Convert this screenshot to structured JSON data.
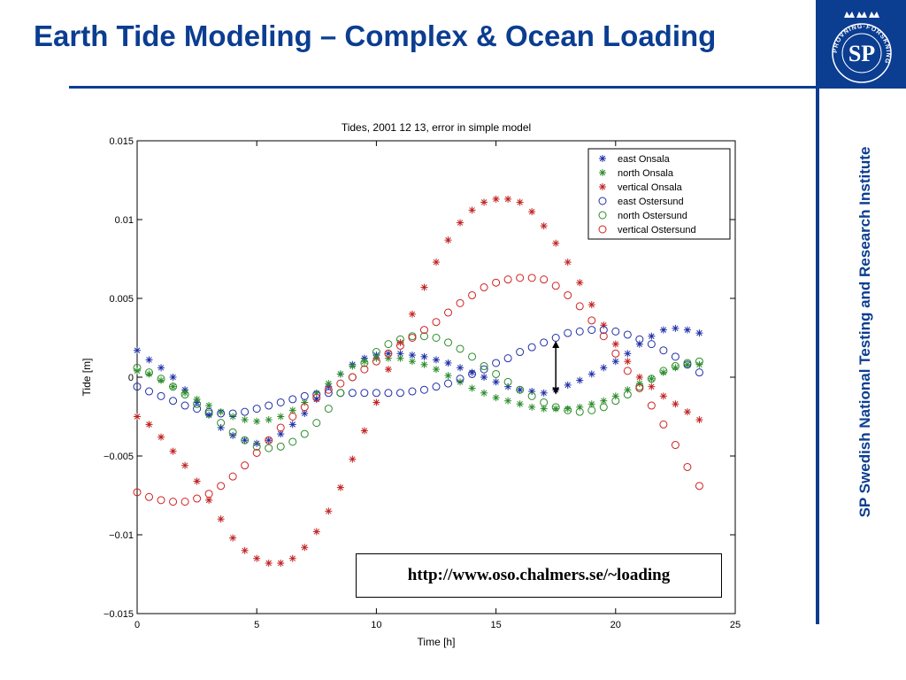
{
  "slide": {
    "title": "Earth Tide Modeling – Complex & Ocean Loading",
    "side_text": "SP Swedish National Testing and Research Institute",
    "url": "http://www.oso.chalmers.se/~loading",
    "logo_text": "SP",
    "logo_ring_text": "PROVNING·FORSKNING",
    "accent_color": "#0b3d91"
  },
  "chart_data": {
    "type": "scatter",
    "title": "Tides, 2001 12 13, error in simple model",
    "xlabel": "Time [h]",
    "ylabel": "Tide [m]",
    "xlim": [
      0,
      25
    ],
    "ylim": [
      -0.015,
      0.015
    ],
    "xticks": [
      0,
      5,
      10,
      15,
      20,
      25
    ],
    "xtick_labels": [
      "0",
      "5",
      "10",
      "15",
      "20",
      "25"
    ],
    "yticks": [
      -0.015,
      -0.01,
      -0.005,
      0,
      0.005,
      0.01,
      0.015
    ],
    "ytick_labels": [
      "−0.015",
      "−0.01",
      "−0.005",
      "0",
      "0.005",
      "0.01",
      "0.015"
    ],
    "legend_position": "top-right",
    "grid": false,
    "x": [
      0,
      0.5,
      1,
      1.5,
      2,
      2.5,
      3,
      3.5,
      4,
      4.5,
      5,
      5.5,
      6,
      6.5,
      7,
      7.5,
      8,
      8.5,
      9,
      9.5,
      10,
      10.5,
      11,
      11.5,
      12,
      12.5,
      13,
      13.5,
      14,
      14.5,
      15,
      15.5,
      16,
      16.5,
      17,
      17.5,
      18,
      18.5,
      19,
      19.5,
      20,
      20.5,
      21,
      21.5,
      22,
      22.5,
      23,
      23.5
    ],
    "series": [
      {
        "name": "east Onsala",
        "marker": "star",
        "color": "#1f2fa6",
        "values": [
          0.0017,
          0.0011,
          0.0006,
          0.0,
          -0.0008,
          -0.0016,
          -0.0024,
          -0.0032,
          -0.0037,
          -0.004,
          -0.0042,
          -0.004,
          -0.0036,
          -0.003,
          -0.0023,
          -0.0014,
          -0.0006,
          0.0002,
          0.0008,
          0.0012,
          0.0014,
          0.0015,
          0.0015,
          0.0014,
          0.0013,
          0.0011,
          0.0009,
          0.0006,
          0.0003,
          0.0,
          -0.0003,
          -0.0006,
          -0.0008,
          -0.0009,
          -0.001,
          -0.0008,
          -0.0005,
          -0.0002,
          0.0002,
          0.0006,
          0.001,
          0.0015,
          0.0021,
          0.0026,
          0.003,
          0.0031,
          0.003,
          0.0028
        ]
      },
      {
        "name": "north Onsala",
        "marker": "star",
        "color": "#2a8c2a",
        "values": [
          0.0004,
          0.0002,
          -0.0002,
          -0.0006,
          -0.001,
          -0.0014,
          -0.0018,
          -0.0022,
          -0.0025,
          -0.0027,
          -0.0028,
          -0.0027,
          -0.0025,
          -0.0021,
          -0.0016,
          -0.001,
          -0.0004,
          0.0002,
          0.0007,
          0.001,
          0.0012,
          0.0012,
          0.0012,
          0.001,
          0.0008,
          0.0005,
          0.0001,
          -0.0003,
          -0.0007,
          -0.001,
          -0.0013,
          -0.0015,
          -0.0017,
          -0.0019,
          -0.002,
          -0.002,
          -0.002,
          -0.0019,
          -0.0017,
          -0.0015,
          -0.0012,
          -0.0008,
          -0.0004,
          -0.0001,
          0.0003,
          0.0006,
          0.0008,
          0.0008
        ]
      },
      {
        "name": "vertical Onsala",
        "marker": "star",
        "color": "#c02020",
        "values": [
          -0.0025,
          -0.003,
          -0.0038,
          -0.0047,
          -0.0056,
          -0.0066,
          -0.0078,
          -0.009,
          -0.0102,
          -0.011,
          -0.0115,
          -0.0118,
          -0.0118,
          -0.0115,
          -0.0108,
          -0.0098,
          -0.0085,
          -0.007,
          -0.0052,
          -0.0034,
          -0.0016,
          0.0005,
          0.0022,
          0.004,
          0.0057,
          0.0073,
          0.0087,
          0.0098,
          0.0106,
          0.0111,
          0.0113,
          0.0113,
          0.0111,
          0.0105,
          0.0096,
          0.0085,
          0.0073,
          0.006,
          0.0046,
          0.0033,
          0.0021,
          0.001,
          0.0,
          -0.0006,
          -0.0012,
          -0.0017,
          -0.0022,
          -0.0027
        ]
      },
      {
        "name": "east Ostersund",
        "marker": "circle",
        "color": "#1f2fa6",
        "values": [
          -0.0006,
          -0.0009,
          -0.0012,
          -0.0015,
          -0.0018,
          -0.002,
          -0.0022,
          -0.0023,
          -0.0023,
          -0.0022,
          -0.002,
          -0.0018,
          -0.0016,
          -0.0014,
          -0.0012,
          -0.0011,
          -0.001,
          -0.001,
          -0.001,
          -0.001,
          -0.001,
          -0.001,
          -0.001,
          -0.0009,
          -0.0008,
          -0.0006,
          -0.0004,
          -0.0001,
          0.0002,
          0.0005,
          0.0009,
          0.0012,
          0.0016,
          0.0019,
          0.0022,
          0.0025,
          0.0028,
          0.0029,
          0.003,
          0.003,
          0.0029,
          0.0027,
          0.0024,
          0.0021,
          0.0017,
          0.0013,
          0.0008,
          0.0003
        ]
      },
      {
        "name": "north Ostersund",
        "marker": "circle",
        "color": "#2a8c2a",
        "values": [
          0.0006,
          0.0003,
          -0.0001,
          -0.0006,
          -0.0011,
          -0.0017,
          -0.0023,
          -0.0029,
          -0.0035,
          -0.004,
          -0.0044,
          -0.0045,
          -0.0044,
          -0.0041,
          -0.0036,
          -0.0029,
          -0.002,
          -0.001,
          0.0,
          0.0009,
          0.0016,
          0.0021,
          0.0024,
          0.0026,
          0.0026,
          0.0025,
          0.0022,
          0.0018,
          0.0013,
          0.0007,
          0.0002,
          -0.0003,
          -0.0008,
          -0.0012,
          -0.0016,
          -0.0019,
          -0.0021,
          -0.0022,
          -0.0021,
          -0.0019,
          -0.0015,
          -0.0011,
          -0.0006,
          -0.0001,
          0.0004,
          0.0007,
          0.0009,
          0.001
        ]
      },
      {
        "name": "vertical Ostersund",
        "marker": "circle",
        "color": "#d02020",
        "values": [
          -0.0073,
          -0.0076,
          -0.0078,
          -0.0079,
          -0.0079,
          -0.0077,
          -0.0074,
          -0.0069,
          -0.0063,
          -0.0056,
          -0.0048,
          -0.004,
          -0.0032,
          -0.0025,
          -0.0019,
          -0.0013,
          -0.0008,
          -0.0004,
          0.0,
          0.0005,
          0.001,
          0.0015,
          0.002,
          0.0025,
          0.003,
          0.0035,
          0.0041,
          0.0047,
          0.0052,
          0.0057,
          0.006,
          0.0062,
          0.0063,
          0.0063,
          0.0062,
          0.0058,
          0.0052,
          0.0045,
          0.0036,
          0.0026,
          0.0015,
          0.0004,
          -0.0007,
          -0.0018,
          -0.003,
          -0.0043,
          -0.0057,
          -0.0069
        ]
      }
    ],
    "annotation": {
      "x": 17.5,
      "y_from": 0.0023,
      "y_to": -0.0011,
      "style": "double-arrow"
    }
  }
}
